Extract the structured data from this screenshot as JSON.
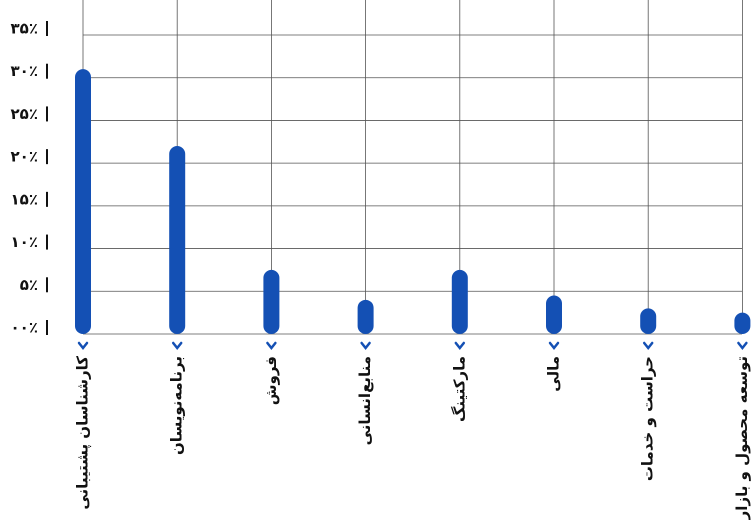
{
  "chart_data": {
    "type": "bar",
    "categories": [
      "کارشناسان پشتیبانی",
      "برنامه‌نویسان",
      "فروش",
      "منابع‌انسانی",
      "مارکتینگ",
      "مالی",
      "حراست و خدمات",
      "توسعه محصول و بازار"
    ],
    "values": [
      31,
      22,
      7.5,
      4,
      7.5,
      4.5,
      3,
      2.5
    ],
    "color": "#1450b4",
    "ylim": [
      0,
      35
    ],
    "yticks": [
      {
        "value": 0,
        "label": "۰۰٪"
      },
      {
        "value": 5,
        "label": "۵٪"
      },
      {
        "value": 10,
        "label": "۱۰٪"
      },
      {
        "value": 15,
        "label": "۱۵٪"
      },
      {
        "value": 20,
        "label": "۲۰٪"
      },
      {
        "value": 25,
        "label": "۲۵٪"
      },
      {
        "value": 30,
        "label": "۳۰٪"
      },
      {
        "value": 35,
        "label": "۳۵٪"
      }
    ],
    "grid": true
  }
}
